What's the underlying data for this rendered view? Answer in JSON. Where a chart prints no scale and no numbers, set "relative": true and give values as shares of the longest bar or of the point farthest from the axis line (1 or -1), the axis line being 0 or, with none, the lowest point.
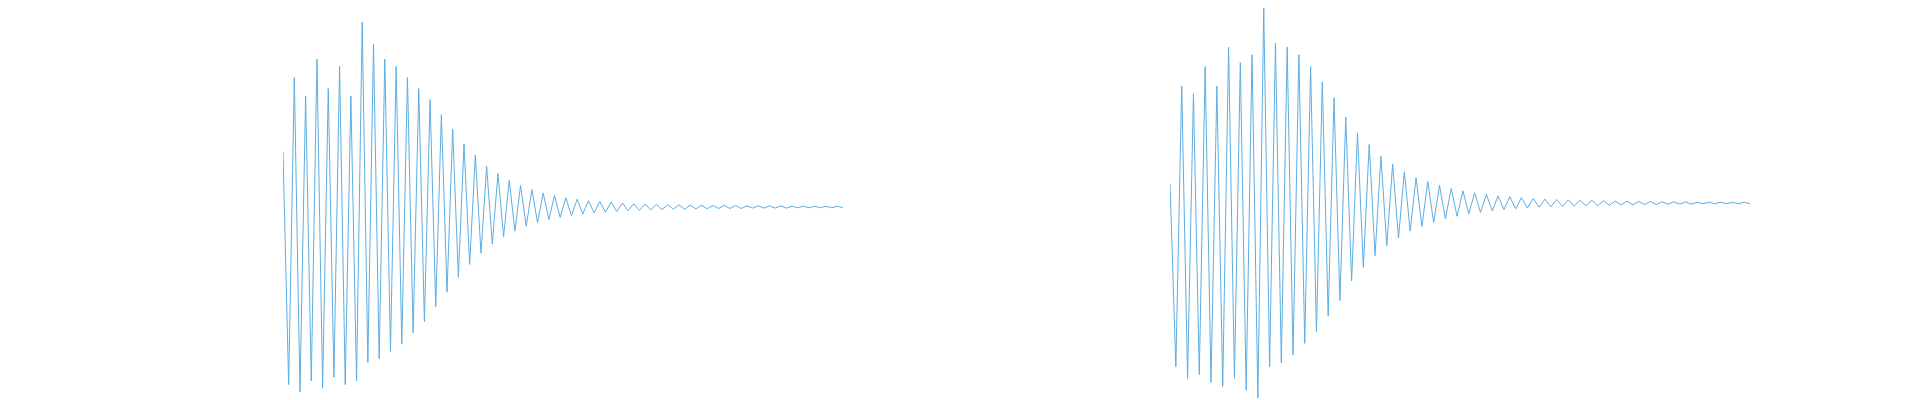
{
  "chart_data": [
    {
      "type": "line",
      "relative": true,
      "categories": [
        null,
        null,
        null,
        null,
        null,
        null,
        null,
        null,
        null,
        null,
        null,
        null,
        null,
        null,
        null,
        null,
        null,
        null,
        null,
        null,
        null,
        null,
        null,
        null,
        null,
        null,
        null,
        null,
        null,
        null,
        null,
        null,
        null,
        null,
        null,
        null,
        null,
        null,
        null,
        null,
        null,
        null,
        null,
        null,
        null,
        null,
        null,
        null,
        null,
        null,
        null,
        null,
        null,
        null,
        null,
        null,
        null,
        null,
        null,
        null,
        null,
        null,
        null,
        null,
        null,
        null,
        null,
        null,
        null,
        null,
        null,
        null,
        null,
        null,
        null,
        null,
        null,
        null,
        null,
        null,
        null,
        null,
        null,
        null,
        null,
        null,
        null,
        null,
        null,
        null,
        null,
        null,
        null,
        null,
        null,
        null,
        null,
        null,
        null,
        null
      ],
      "series": [
        {
          "color": "#5dade2",
          "values": [
            0.65,
            0.02,
            0.85,
            0.0,
            0.8,
            0.03,
            0.9,
            0.01,
            0.82,
            0.04,
            0.88,
            0.02,
            0.8,
            0.03,
            1.0,
            0.08,
            0.94,
            0.09,
            0.9,
            0.11,
            0.88,
            0.13,
            0.85,
            0.16,
            0.82,
            0.19,
            0.79,
            0.23,
            0.75,
            0.27,
            0.71,
            0.31,
            0.67,
            0.345,
            0.64,
            0.375,
            0.61,
            0.4,
            0.59,
            0.42,
            0.572,
            0.435,
            0.558,
            0.448,
            0.547,
            0.458,
            0.538,
            0.466,
            0.531,
            0.472,
            0.525,
            0.477,
            0.521,
            0.481,
            0.517,
            0.484,
            0.515,
            0.486,
            0.513,
            0.488,
            0.511,
            0.49,
            0.509,
            0.491,
            0.508,
            0.492,
            0.507,
            0.493,
            0.506,
            0.494,
            0.506,
            0.494,
            0.505,
            0.495,
            0.505,
            0.495,
            0.504,
            0.496,
            0.504,
            0.496,
            0.504,
            0.496,
            0.503,
            0.497,
            0.503,
            0.497,
            0.503,
            0.497,
            0.503,
            0.497,
            0.502,
            0.498,
            0.502,
            0.498,
            0.502,
            0.498,
            0.502,
            0.498,
            0.502,
            0.498
          ]
        }
      ]
    },
    {
      "type": "line",
      "relative": true,
      "categories": [
        null,
        null,
        null,
        null,
        null,
        null,
        null,
        null,
        null,
        null,
        null,
        null,
        null,
        null,
        null,
        null,
        null,
        null,
        null,
        null,
        null,
        null,
        null,
        null,
        null,
        null,
        null,
        null,
        null,
        null,
        null,
        null,
        null,
        null,
        null,
        null,
        null,
        null,
        null,
        null,
        null,
        null,
        null,
        null,
        null,
        null,
        null,
        null,
        null,
        null,
        null,
        null,
        null,
        null,
        null,
        null,
        null,
        null,
        null,
        null,
        null,
        null,
        null,
        null,
        null,
        null,
        null,
        null,
        null,
        null,
        null,
        null,
        null,
        null,
        null,
        null,
        null,
        null,
        null,
        null,
        null,
        null,
        null,
        null,
        null,
        null,
        null,
        null,
        null,
        null,
        null,
        null,
        null,
        null,
        null,
        null,
        null,
        null,
        null,
        null
      ],
      "series": [
        {
          "color": "#5dade2",
          "values": [
            0.55,
            0.08,
            0.8,
            0.05,
            0.78,
            0.06,
            0.85,
            0.04,
            0.8,
            0.03,
            0.9,
            0.05,
            0.86,
            0.02,
            0.88,
            0.0,
            1.0,
            0.08,
            0.91,
            0.09,
            0.9,
            0.11,
            0.88,
            0.14,
            0.85,
            0.17,
            0.81,
            0.21,
            0.77,
            0.25,
            0.72,
            0.3,
            0.68,
            0.335,
            0.65,
            0.365,
            0.62,
            0.39,
            0.6,
            0.41,
            0.58,
            0.428,
            0.565,
            0.44,
            0.555,
            0.45,
            0.545,
            0.459,
            0.537,
            0.466,
            0.531,
            0.472,
            0.526,
            0.476,
            0.522,
            0.48,
            0.518,
            0.483,
            0.516,
            0.485,
            0.514,
            0.487,
            0.512,
            0.489,
            0.51,
            0.49,
            0.509,
            0.491,
            0.508,
            0.492,
            0.507,
            0.493,
            0.507,
            0.493,
            0.506,
            0.494,
            0.505,
            0.495,
            0.505,
            0.495,
            0.504,
            0.496,
            0.504,
            0.496,
            0.503,
            0.497,
            0.503,
            0.497,
            0.503,
            0.497,
            0.502,
            0.498,
            0.502,
            0.498,
            0.502,
            0.498,
            0.502,
            0.498,
            0.502,
            0.498
          ]
        }
      ]
    }
  ]
}
